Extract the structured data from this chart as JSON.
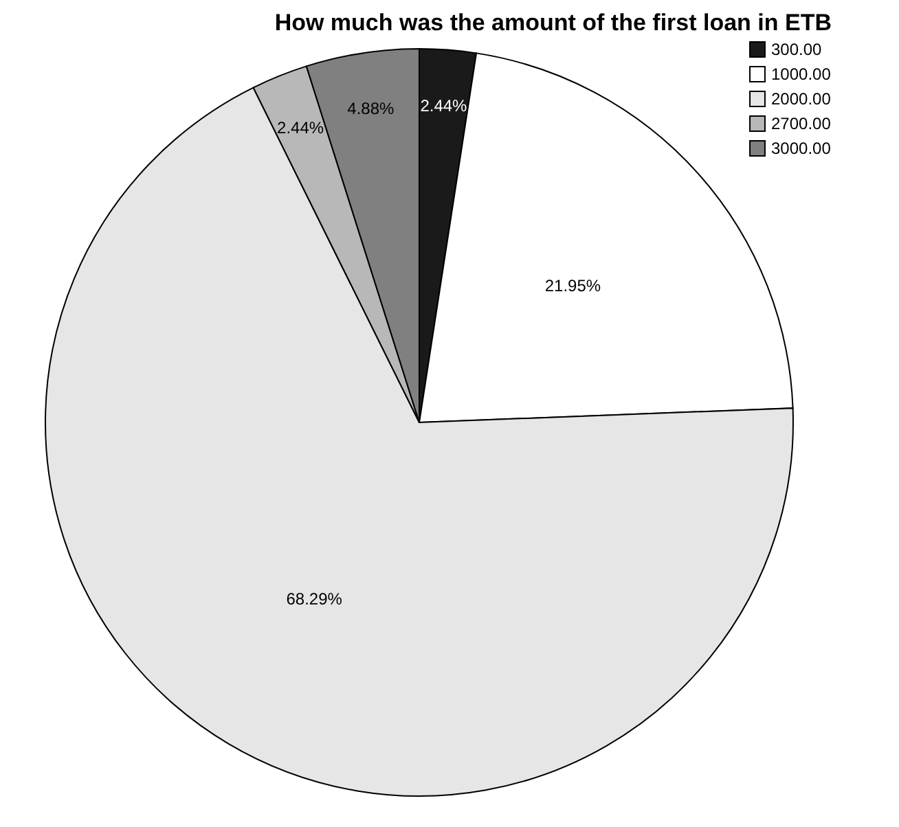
{
  "chart_data": {
    "type": "pie",
    "title": "How much was the amount of the first loan in ETB",
    "categories": [
      "300.00",
      "1000.00",
      "2000.00",
      "2700.00",
      "3000.00"
    ],
    "values": [
      2.44,
      21.95,
      68.29,
      2.44,
      4.88
    ],
    "colors": [
      "#1a1a1a",
      "#ffffff",
      "#e6e6e6",
      "#b8b8b8",
      "#808080"
    ],
    "value_labels": [
      "2.44%",
      "21.95%",
      "68.29%",
      "2.44%",
      "4.88%"
    ],
    "legend": "top right"
  }
}
